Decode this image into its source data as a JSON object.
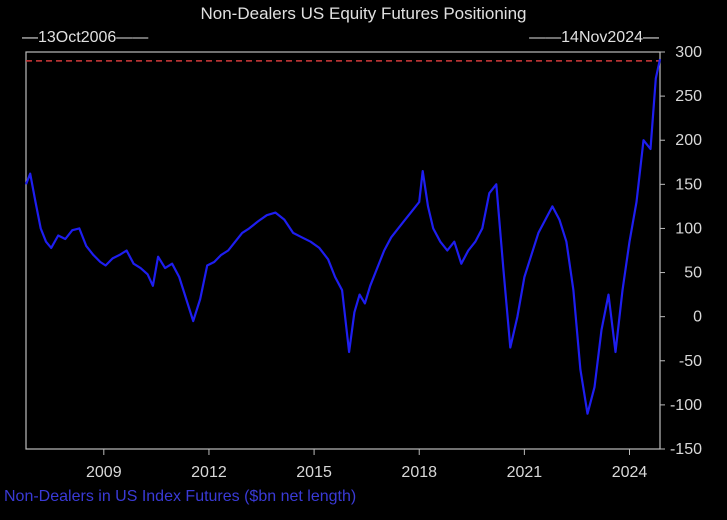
{
  "chart_data": {
    "type": "line",
    "title": "Non-Dealers US Equity Futures Positioning",
    "subtitle": "Non-Dealers in US Index Futures ($bn net length)",
    "start_label": "13Oct2006",
    "end_label": "14Nov2024",
    "x_ticks": [
      "2009",
      "2012",
      "2015",
      "2018",
      "2021",
      "2024"
    ],
    "y_ticks": [
      300,
      250,
      200,
      150,
      100,
      50,
      0,
      -50,
      -100,
      -150
    ],
    "xlim": [
      2006.78,
      2024.87
    ],
    "ylim": [
      -150,
      300
    ],
    "reference_line": {
      "y": 290,
      "color": "#d23a3a",
      "style": "dashed"
    },
    "grid": false,
    "series": [
      {
        "color": "#1e1ef0",
        "x": [
          2006.78,
          2006.9,
          2007.05,
          2007.2,
          2007.35,
          2007.5,
          2007.7,
          2007.9,
          2008.1,
          2008.3,
          2008.5,
          2008.7,
          2008.9,
          2009.05,
          2009.25,
          2009.45,
          2009.65,
          2009.85,
          2010.05,
          2010.25,
          2010.4,
          2010.55,
          2010.75,
          2010.95,
          2011.15,
          2011.35,
          2011.55,
          2011.75,
          2011.95,
          2012.15,
          2012.35,
          2012.55,
          2012.75,
          2012.95,
          2013.15,
          2013.4,
          2013.65,
          2013.9,
          2014.15,
          2014.4,
          2014.65,
          2014.9,
          2015.15,
          2015.4,
          2015.6,
          2015.8,
          2016.0,
          2016.15,
          2016.3,
          2016.45,
          2016.6,
          2016.8,
          2017.0,
          2017.2,
          2017.4,
          2017.6,
          2017.8,
          2018.0,
          2018.1,
          2018.25,
          2018.4,
          2018.6,
          2018.8,
          2019.0,
          2019.2,
          2019.4,
          2019.6,
          2019.8,
          2020.0,
          2020.2,
          2020.4,
          2020.6,
          2020.8,
          2021.0,
          2021.2,
          2021.4,
          2021.6,
          2021.8,
          2022.0,
          2022.2,
          2022.4,
          2022.6,
          2022.8,
          2023.0,
          2023.2,
          2023.4,
          2023.6,
          2023.8,
          2024.0,
          2024.2,
          2024.4,
          2024.6,
          2024.75,
          2024.87
        ],
        "y": [
          150,
          162,
          130,
          100,
          85,
          78,
          92,
          88,
          98,
          100,
          80,
          70,
          62,
          58,
          66,
          70,
          75,
          60,
          55,
          48,
          35,
          68,
          55,
          60,
          45,
          20,
          -5,
          20,
          58,
          62,
          70,
          75,
          85,
          95,
          100,
          108,
          115,
          118,
          110,
          95,
          90,
          85,
          78,
          65,
          45,
          30,
          -40,
          5,
          25,
          15,
          35,
          55,
          75,
          90,
          100,
          110,
          120,
          130,
          165,
          125,
          100,
          85,
          75,
          85,
          60,
          75,
          85,
          100,
          140,
          150,
          55,
          -35,
          0,
          45,
          70,
          95,
          110,
          125,
          110,
          85,
          30,
          -60,
          -110,
          -80,
          -15,
          25,
          -40,
          30,
          85,
          130,
          200,
          190,
          270,
          292
        ]
      }
    ]
  }
}
